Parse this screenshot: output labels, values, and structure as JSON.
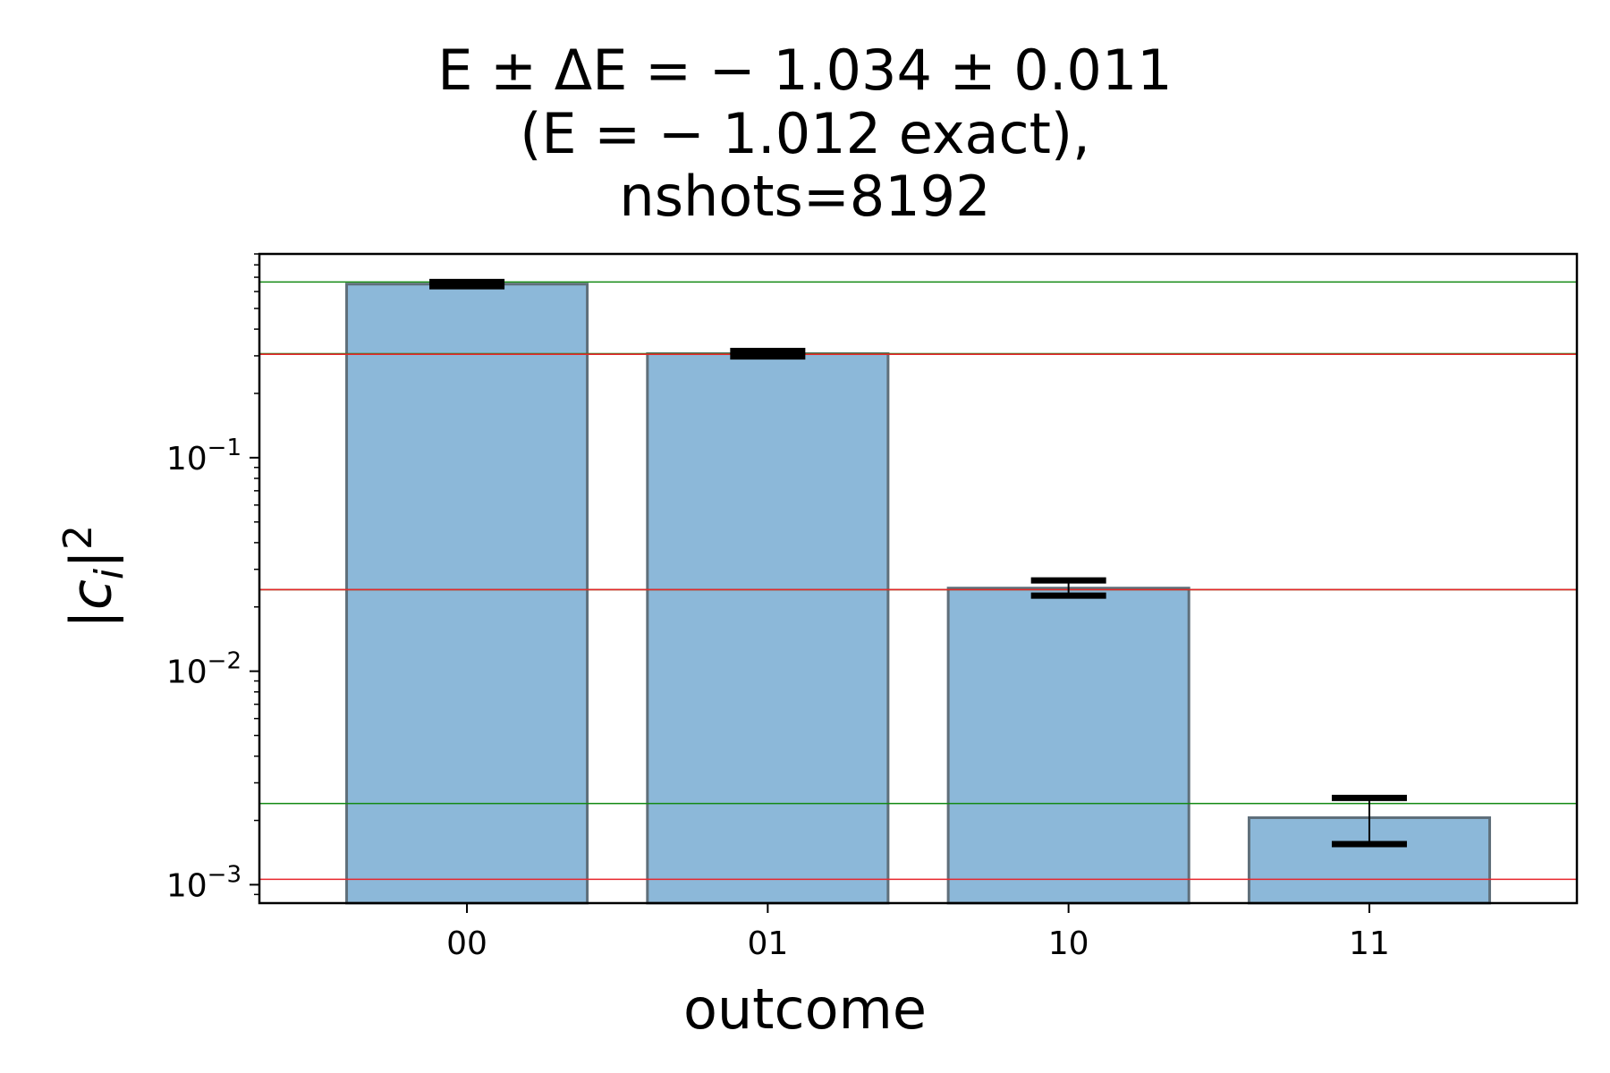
{
  "title": {
    "line1": "E ± ΔE = − 1.034 ± 0.011",
    "line2": "(E = − 1.012 exact),",
    "line3": "nshots=8192"
  },
  "chart_data": {
    "type": "bar",
    "title": "E ± ΔE = − 1.034 ± 0.011 (E = − 1.012 exact), nshots=8192",
    "xlabel": "outcome",
    "ylabel": "|c_i|^2",
    "yscale": "log",
    "ylim": [
      0.00082,
      0.9
    ],
    "categories": [
      "00",
      "01",
      "10",
      "11"
    ],
    "values": [
      0.65,
      0.307,
      0.0245,
      0.00206
    ],
    "error_low": [
      0.635,
      0.298,
      0.0226,
      0.00155
    ],
    "error_high": [
      0.665,
      0.316,
      0.0266,
      0.00255
    ],
    "reference_lines": {
      "green": [
        0.665,
        0.307,
        0.0241,
        0.0024
      ],
      "red": [
        0.305,
        0.0241,
        0.00106
      ]
    },
    "yticks": [
      {
        "value": 0.1,
        "base": "10",
        "exp": "−1"
      },
      {
        "value": 0.01,
        "base": "10",
        "exp": "−2"
      },
      {
        "value": 0.001,
        "base": "10",
        "exp": "−3"
      }
    ],
    "bar_color": "#8cb8d9",
    "bar_edge_color": "#5f6f7a",
    "green_line_color": "#138a13",
    "red_line_color": "#e8262b",
    "grid": false,
    "legend": "none"
  }
}
